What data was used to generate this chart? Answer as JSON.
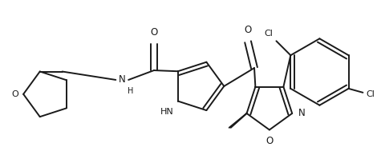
{
  "bg_color": "#ffffff",
  "line_color": "#1a1a1a",
  "line_width": 1.6,
  "figsize": [
    4.7,
    1.89
  ],
  "dpi": 100,
  "xlim": [
    0.0,
    4.7
  ],
  "ylim": [
    0.0,
    1.89
  ]
}
